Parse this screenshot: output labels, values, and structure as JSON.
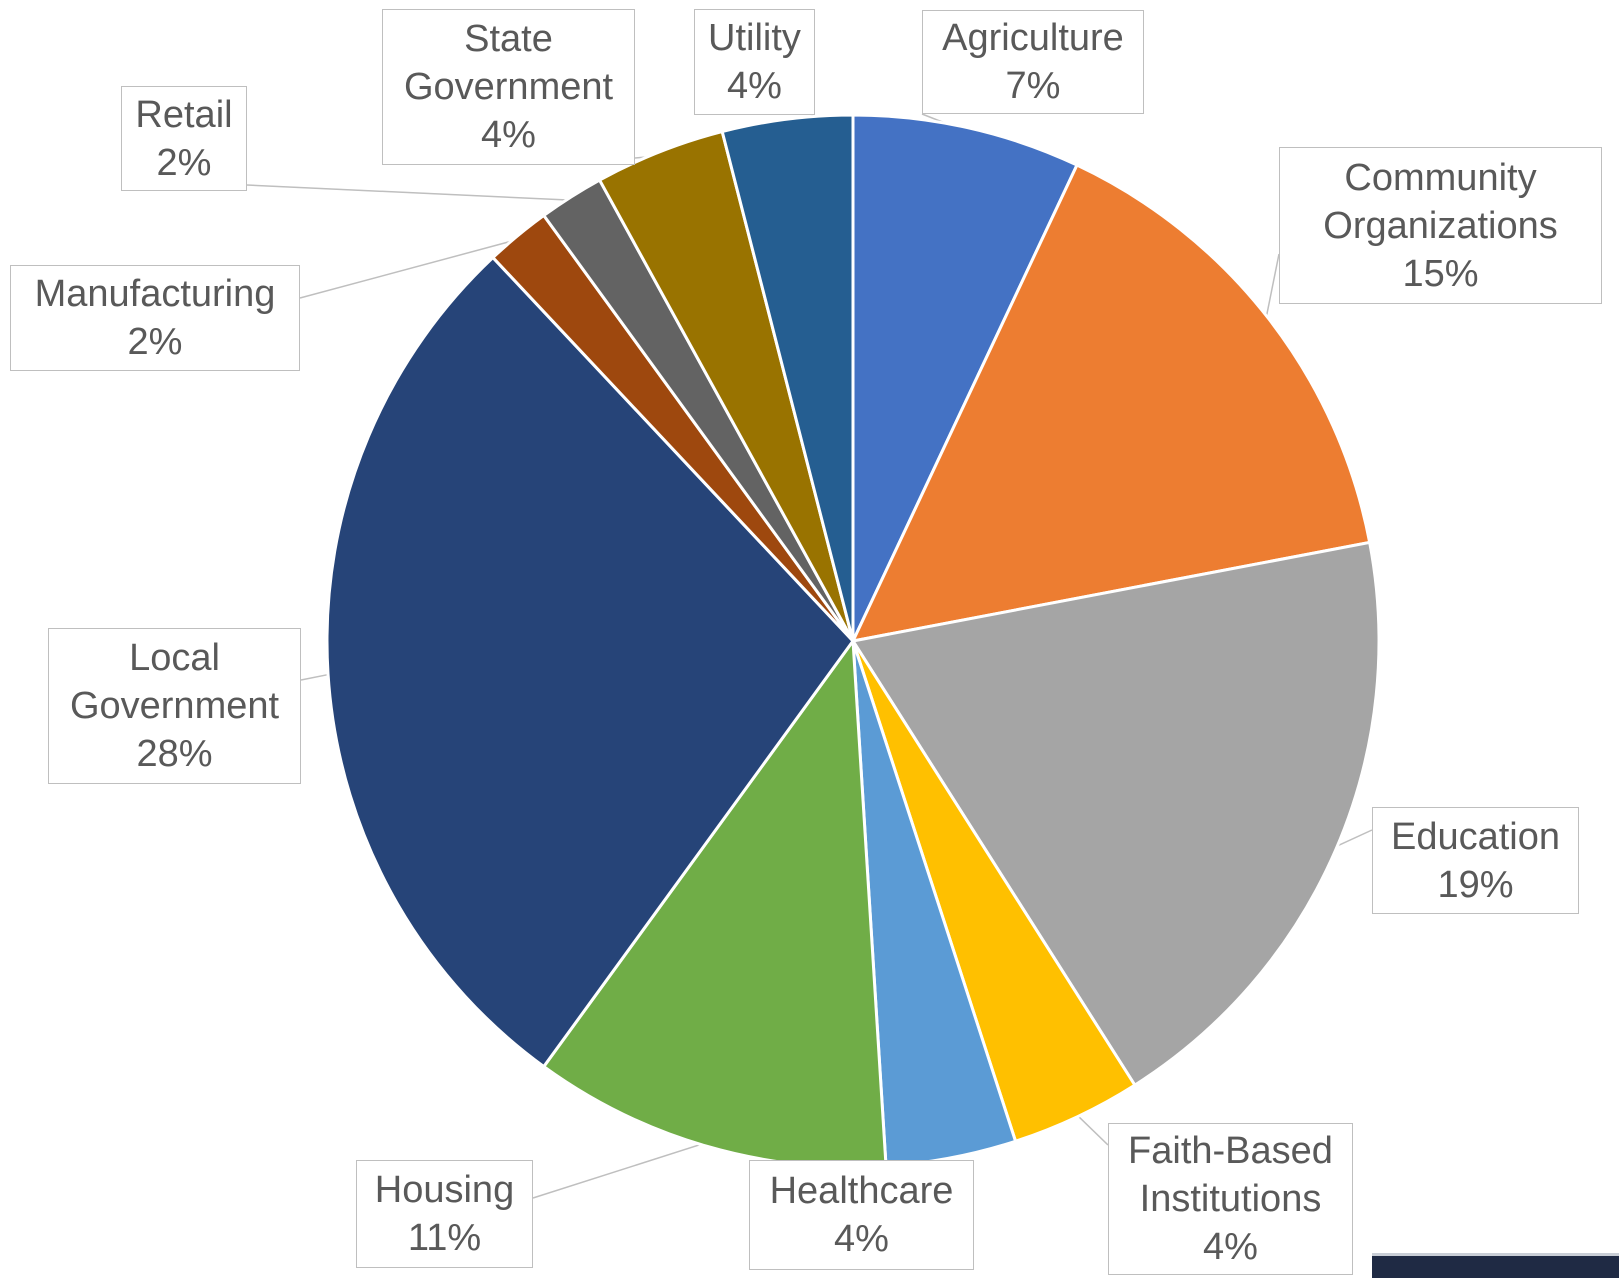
{
  "chart_data": {
    "type": "pie",
    "slices": [
      {
        "name": "Agriculture",
        "label": [
          "Agriculture"
        ],
        "pct_label": "7%",
        "value": 7,
        "color": "#4472C4"
      },
      {
        "name": "Community Organizations",
        "label": [
          "Community",
          "Organizations"
        ],
        "pct_label": "15%",
        "value": 15,
        "color": "#ED7D31"
      },
      {
        "name": "Education",
        "label": [
          "Education"
        ],
        "pct_label": "19%",
        "value": 19,
        "color": "#A5A5A5"
      },
      {
        "name": "Faith-Based Institutions",
        "label": [
          "Faith-Based",
          "Institutions"
        ],
        "pct_label": "4%",
        "value": 4,
        "color": "#FFC000"
      },
      {
        "name": "Healthcare",
        "label": [
          "Healthcare"
        ],
        "pct_label": "4%",
        "value": 4,
        "color": "#5B9BD5"
      },
      {
        "name": "Housing",
        "label": [
          "Housing"
        ],
        "pct_label": "11%",
        "value": 11,
        "color": "#70AD47"
      },
      {
        "name": "Local Government",
        "label": [
          "Local",
          "Government"
        ],
        "pct_label": "28%",
        "value": 28,
        "color": "#264478"
      },
      {
        "name": "Manufacturing",
        "label": [
          "Manufacturing"
        ],
        "pct_label": "2%",
        "value": 2,
        "color": "#9E480E"
      },
      {
        "name": "Retail",
        "label": [
          "Retail"
        ],
        "pct_label": "2%",
        "value": 2,
        "color": "#636363"
      },
      {
        "name": "State Government",
        "label": [
          "State",
          "Government"
        ],
        "pct_label": "4%",
        "value": 4,
        "color": "#997300"
      },
      {
        "name": "Utility",
        "label": [
          "Utility"
        ],
        "pct_label": "4%",
        "value": 4,
        "color": "#255E91"
      }
    ],
    "start_angle": "12 o'clock",
    "direction": "clockwise",
    "data_labels": "callouts with leader lines",
    "legend": "none"
  }
}
